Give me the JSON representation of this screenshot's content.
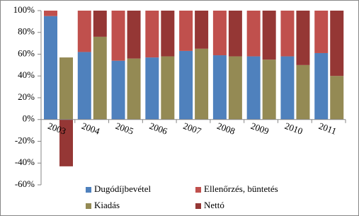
{
  "chart_data": {
    "type": "bar",
    "stacked": true,
    "categories": [
      "2003",
      "2004",
      "2005",
      "2006",
      "2007",
      "2008",
      "2009",
      "2010",
      "2011"
    ],
    "series": [
      {
        "name": "Dugódíjbevétel",
        "color": "#4f81bd",
        "stack": 1,
        "values": [
          95,
          62,
          54,
          57,
          63,
          59,
          58,
          58,
          61
        ]
      },
      {
        "name": "Ellenőrzés, büntetés",
        "color": "#c0504d",
        "stack": 1,
        "values": [
          5,
          38,
          46,
          43,
          37,
          41,
          42,
          42,
          39
        ]
      },
      {
        "name": "Kiadás",
        "color": "#948a54",
        "stack": 2,
        "values": [
          57,
          76,
          56,
          58,
          65,
          58,
          55,
          50,
          40
        ]
      },
      {
        "name": "Nettó",
        "color": "#953735",
        "stack": 2,
        "values": [
          -43,
          24,
          44,
          42,
          35,
          42,
          45,
          50,
          60
        ]
      }
    ],
    "ylim": [
      -60,
      100
    ],
    "yticks": [
      {
        "value": -60,
        "label": "-60%"
      },
      {
        "value": -40,
        "label": "-40%"
      },
      {
        "value": -20,
        "label": "-20%"
      },
      {
        "value": 0,
        "label": "0%"
      },
      {
        "value": 20,
        "label": "20%"
      },
      {
        "value": 40,
        "label": "40%"
      },
      {
        "value": 60,
        "label": "60%"
      },
      {
        "value": 80,
        "label": "80%"
      },
      {
        "value": 100,
        "label": "100%"
      }
    ],
    "grid": false,
    "legend": "bottom"
  }
}
